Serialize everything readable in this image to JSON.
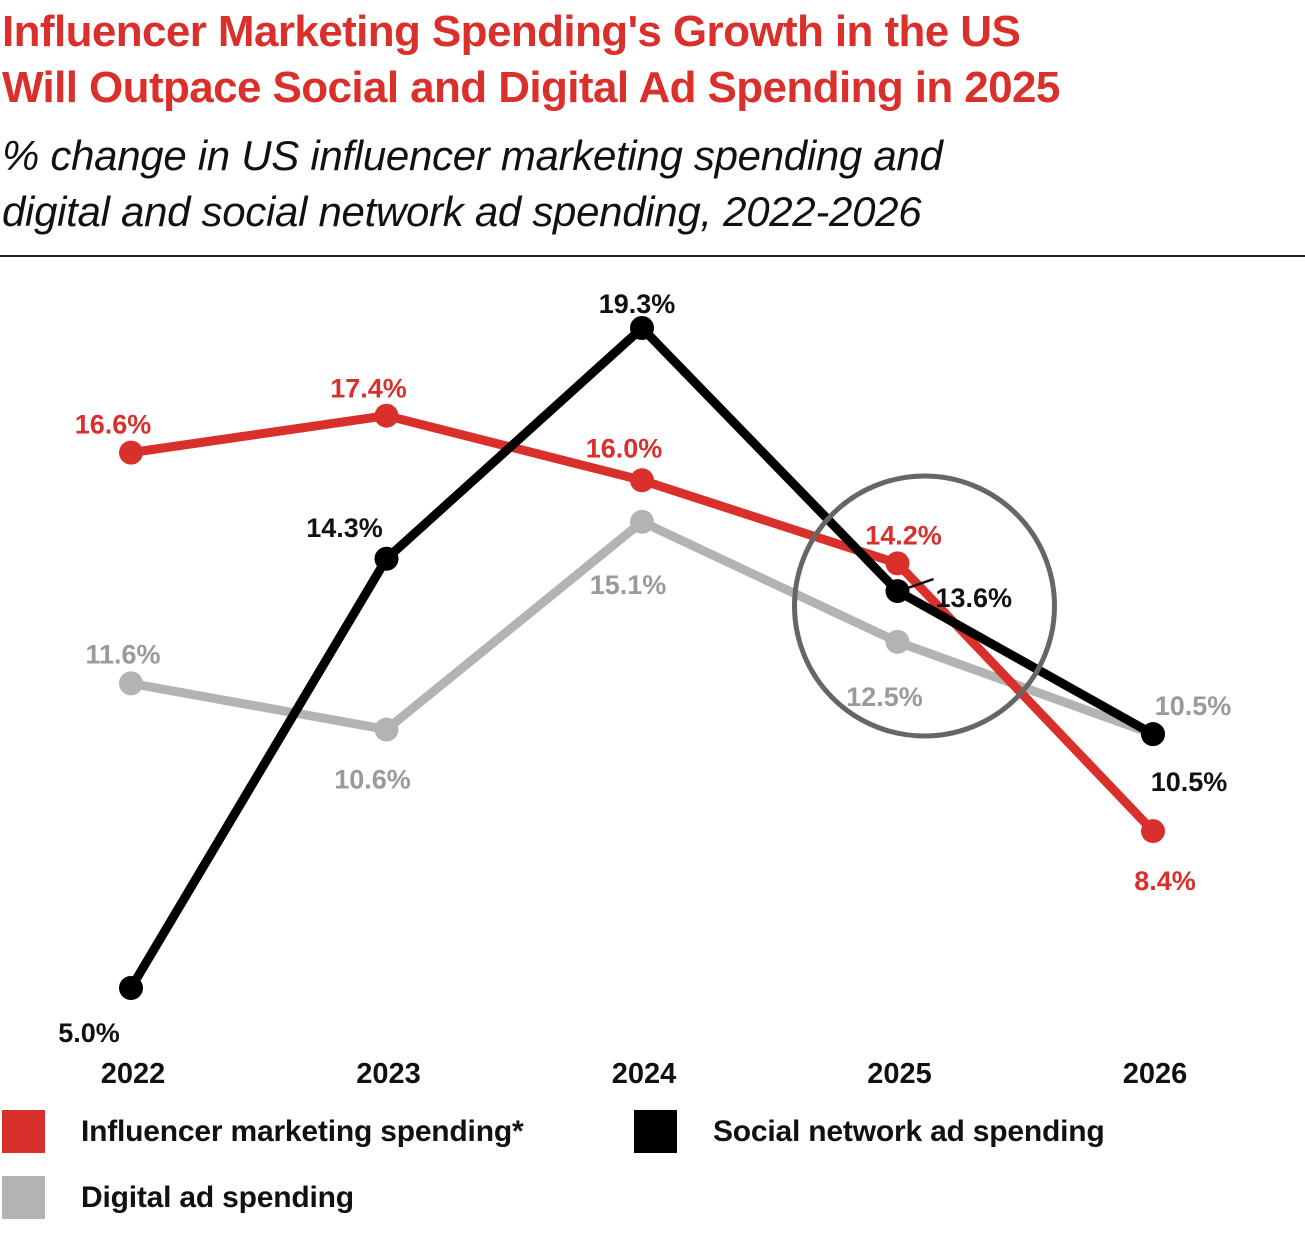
{
  "header": {
    "title_line1": "Influencer Marketing Spending's Growth in the US",
    "title_line2": "Will Outpace Social and Digital Ad Spending in 2025",
    "subtitle_line1": "% change in US influencer marketing spending and",
    "subtitle_line2": "digital and social network ad spending, 2022-2026"
  },
  "colors": {
    "influencer": "#d9302c",
    "social": "#000000",
    "digital": "#b3b3b3",
    "digital_label": "#9a9a9a",
    "highlight_circle": "#666666",
    "title": "#d9302c"
  },
  "chart_data": {
    "type": "line",
    "title": "Influencer Marketing Spending's Growth in the US Will Outpace Social and Digital Ad Spending in 2025",
    "subtitle": "% change in US influencer marketing spending and digital and social network ad spending, 2022-2026",
    "xlabel": "",
    "ylabel": "",
    "categories": [
      "2022",
      "2023",
      "2024",
      "2025",
      "2026"
    ],
    "grid": false,
    "y_axis_shown": false,
    "ylim": [
      5.0,
      19.3
    ],
    "series": [
      {
        "key": "influencer",
        "name": "Influencer marketing spending*",
        "values": [
          16.6,
          17.4,
          16.0,
          14.2,
          8.4
        ],
        "labels": [
          "16.6%",
          "17.4%",
          "16.0%",
          "14.2%",
          "8.4%"
        ]
      },
      {
        "key": "social",
        "name": "Social network ad spending",
        "values": [
          5.0,
          14.3,
          19.3,
          13.6,
          10.5
        ],
        "labels": [
          "5.0%",
          "14.3%",
          "19.3%",
          "13.6%",
          "10.5%"
        ]
      },
      {
        "key": "digital",
        "name": "Digital ad spending",
        "values": [
          11.6,
          10.6,
          15.1,
          12.5,
          10.5
        ],
        "labels": [
          "11.6%",
          "10.6%",
          "15.1%",
          "12.5%",
          "10.5%"
        ]
      }
    ],
    "annotations": [
      {
        "type": "circle-highlight",
        "category": "2025",
        "note": "highlights 2025 crossover"
      }
    ],
    "legend": {
      "placement": "bottom-left",
      "items": [
        {
          "key": "influencer",
          "label": "Influencer marketing spending*"
        },
        {
          "key": "social",
          "label": "Social network ad spending"
        },
        {
          "key": "digital",
          "label": "Digital ad spending"
        }
      ]
    }
  }
}
